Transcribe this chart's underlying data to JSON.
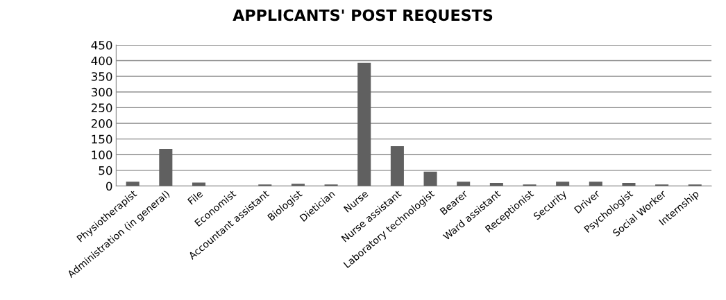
{
  "chart_data": {
    "type": "bar",
    "title": "APPLICANTS' POST REQUESTS",
    "categories": [
      "Physiotherapist",
      "Administration (in general)",
      "File",
      "Economist",
      "Accountant assistant",
      "Biologist",
      "Dietician",
      "Nurse",
      "Nurse assistant",
      "Laboratory technologist",
      "Bearer",
      "Ward assistant",
      "Receptionist",
      "Security",
      "Driver",
      "Psychologist",
      "Social Worker",
      "Internship"
    ],
    "values": [
      14,
      118,
      11,
      0,
      5,
      7,
      5,
      393,
      127,
      46,
      14,
      10,
      5,
      14,
      14,
      10,
      5,
      5
    ],
    "color": "#606060",
    "ylim": [
      0,
      450
    ],
    "yticks": [
      0,
      50,
      100,
      150,
      200,
      250,
      300,
      350,
      400,
      450
    ],
    "grid": "y",
    "legend": false
  }
}
